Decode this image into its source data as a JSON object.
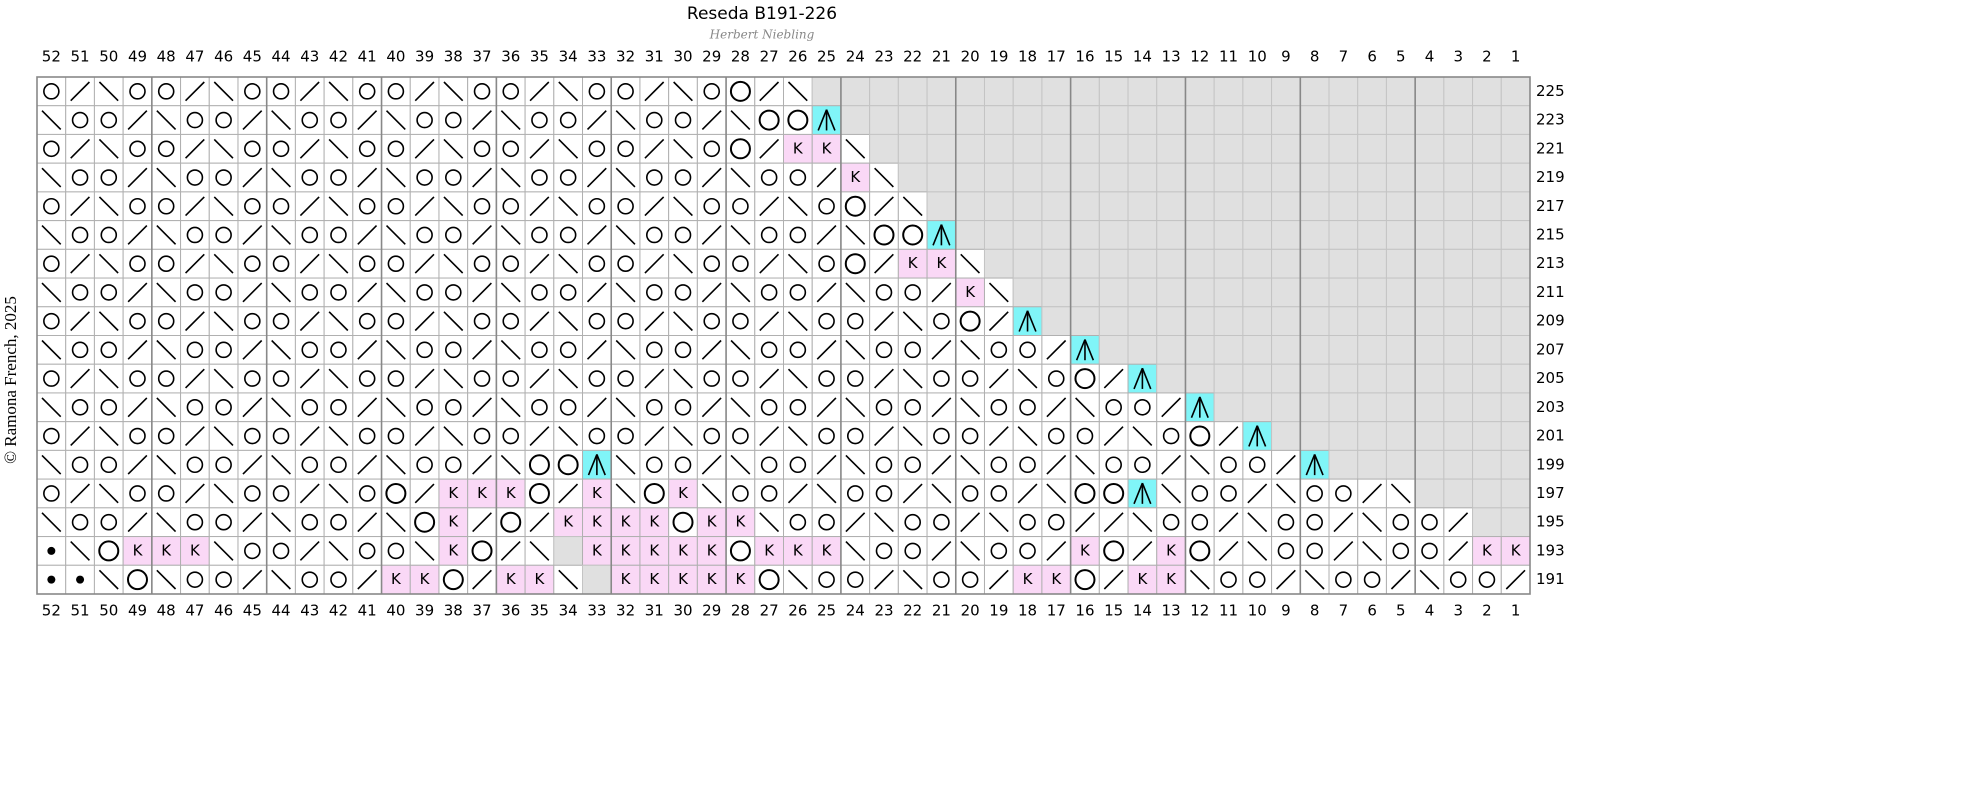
{
  "title": "Reseda B191-226",
  "subtitle": "Herbert Niebling",
  "copyright": "© Ramona French, 2025",
  "columns": [
    52,
    51,
    50,
    49,
    48,
    47,
    46,
    45,
    44,
    43,
    42,
    41,
    40,
    39,
    38,
    37,
    36,
    35,
    34,
    33,
    32,
    31,
    30,
    29,
    28,
    27,
    26,
    25,
    24,
    23,
    22,
    21,
    20,
    19,
    18,
    17,
    16,
    15,
    14,
    13,
    12,
    11,
    10,
    9,
    8,
    7,
    6,
    5,
    4,
    3,
    2,
    1
  ],
  "rows": [
    {
      "number": 225,
      "cells": "o/\\oo/\\oo/\\oo/\\oo/\\oo/\\oO/\\xxxxxxxxxxxxxxxxxxxxxxxxx"
    },
    {
      "number": 223,
      "cells": "\\oo/\\oo/\\oo/\\oo/\\oo/\\oo/\\OO^xxxxxxxxxxxxxxxxxxxxxxxx"
    },
    {
      "number": 221,
      "cells": "o/\\oo/\\oo/\\oo/\\oo/\\oo/\\oO/KK\\xxxxxxxxxxxxxxxxxxxxxxx"
    },
    {
      "number": 219,
      "cells": "\\oo/\\oo/\\oo/\\oo/\\oo/\\oo/\\oo/K\\xxxxxxxxxxxxxxxxxxxxxx"
    },
    {
      "number": 217,
      "cells": "o/\\oo/\\oo/\\oo/\\oo/\\oo/\\oo/\\oO/\\xxxxxxxxxxxxxxxxxxxxx"
    },
    {
      "number": 215,
      "cells": "\\oo/\\oo/\\oo/\\oo/\\oo/\\oo/\\oo/\\OO^xxxxxxxxxxxxxxxxxxxx"
    },
    {
      "number": 213,
      "cells": "o/\\oo/\\oo/\\oo/\\oo/\\oo/\\oo/\\oO/KK\\xxxxxxxxxxxxxxxxxxx"
    },
    {
      "number": 211,
      "cells": "\\oo/\\oo/\\oo/\\oo/\\oo/\\oo/\\oo/\\oo/K\\xxxxxxxxxxxxxxxxxx"
    },
    {
      "number": 209,
      "cells": "o/\\oo/\\oo/\\oo/\\oo/\\oo/\\oo/\\oo/\\oO/^xxxxxxxxxxxxxxxxx"
    },
    {
      "number": 207,
      "cells": "\\oo/\\oo/\\oo/\\oo/\\oo/\\oo/\\oo/\\oo/\\oo/^xxxxxxxxxxxxxxx"
    },
    {
      "number": 205,
      "cells": "o/\\oo/\\oo/\\oo/\\oo/\\oo/\\oo/\\oo/\\oo/\\oO/^xxxxxxxxxxxxx"
    },
    {
      "number": 203,
      "cells": "\\oo/\\oo/\\oo/\\oo/\\oo/\\oo/\\oo/\\oo/\\oo/\\oo/^xxxxxxxxxxx"
    },
    {
      "number": 201,
      "cells": "o/\\oo/\\oo/\\oo/\\oo/\\oo/\\oo/\\oo/\\oo/\\oo/\\oO/^xxxxxxxxx"
    },
    {
      "number": 199,
      "cells": "\\oo/\\oo/\\oo/\\oo/\\OO^\\oo/\\oo/\\oo/\\oo/\\oo/\\oo/^xxxxxxx"
    },
    {
      "number": 197,
      "cells": "o/\\oo/\\oo/\\oO/KKKO/K\\OK\\oo/\\oo/\\oo/\\OO^\\oo/\\oo/\\xxxx"
    },
    {
      "number": 195,
      "cells": "\\oo/\\oo/\\oo/\\OK/O/KKKKOKK\\oo/\\oo/\\oo//\\oo/\\oo/\\oo/xx"
    },
    {
      "number": 193,
      "cells": ".\\OKKK\\oo/\\oo\\KO/\\xKKKKKOKKK\\oo/\\oo/KO/KO/\\oo/\\oo/KK"
    },
    {
      "number": 191,
      "cells": "..\\O\\oo/\\oo/KKO/KK\\xKKKKKO\\oo/\\oo/KKO/KK\\oo/\\oo/\\oo/"
    }
  ]
}
